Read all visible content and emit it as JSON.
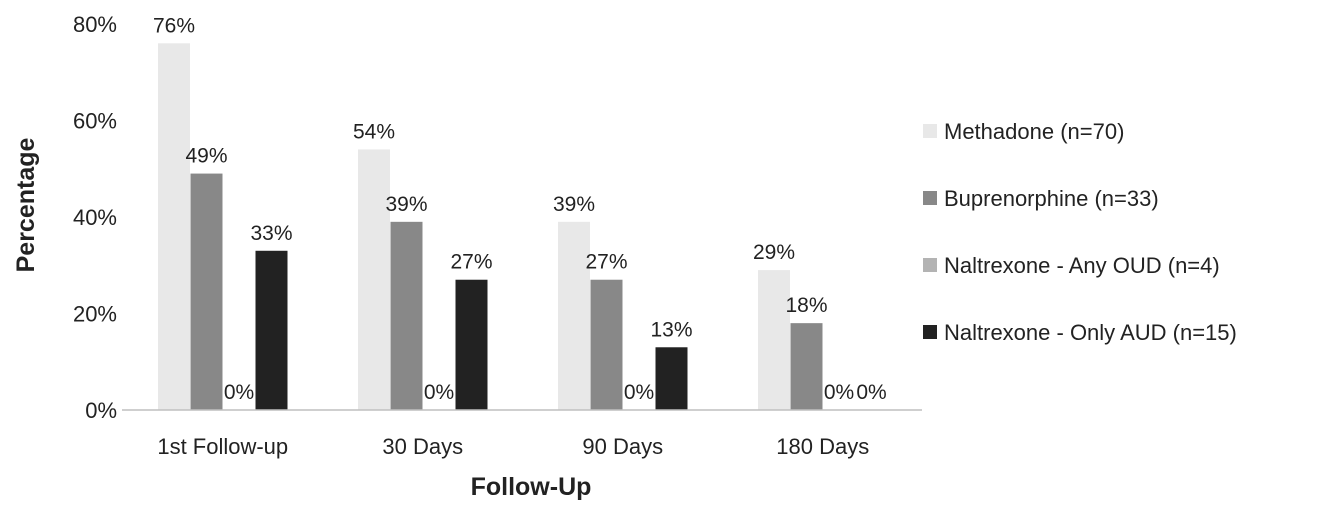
{
  "chart_data": {
    "type": "bar",
    "title": "",
    "xlabel": "Follow-Up",
    "ylabel": "Percentage",
    "ylim": [
      0,
      80
    ],
    "yticks": [
      "0%",
      "20%",
      "40%",
      "60%",
      "80%"
    ],
    "grid": false,
    "legend_position": "right",
    "categories": [
      "1st Follow-up",
      "30 Days",
      "90 Days",
      "180 Days"
    ],
    "series": [
      {
        "name": "Methadone (n=70)",
        "color": "#e8e8e8",
        "values": [
          76,
          54,
          39,
          29
        ],
        "labels": [
          "76%",
          "54%",
          "39%",
          "29%"
        ]
      },
      {
        "name": "Buprenorphine (n=33)",
        "color": "#888888",
        "values": [
          49,
          39,
          27,
          18
        ],
        "labels": [
          "49%",
          "39%",
          "27%",
          "18%"
        ]
      },
      {
        "name": "Naltrexone - Any OUD (n=4)",
        "color": "#b3b3b3",
        "values": [
          0,
          0,
          0,
          0
        ],
        "labels": [
          "0%",
          "0%",
          "0%",
          "0%"
        ]
      },
      {
        "name": "Naltrexone - Only AUD (n=15)",
        "color": "#222222",
        "values": [
          33,
          27,
          13,
          0
        ],
        "labels": [
          "33%",
          "27%",
          "13%",
          "0%"
        ]
      }
    ]
  }
}
